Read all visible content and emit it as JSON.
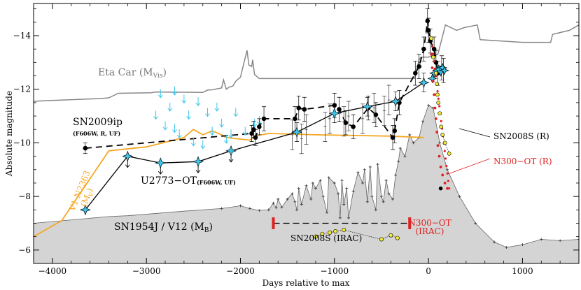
{
  "chart_data": {
    "type": "line",
    "xlabel": "Days relative to max",
    "ylabel": "Absolute magnitude",
    "xlim": [
      -4200,
      1600
    ],
    "ylim": [
      -5.5,
      -15.2
    ],
    "y_inverted": true,
    "x_ticks": [
      -4000,
      -3000,
      -2000,
      -1000,
      0,
      1000
    ],
    "x_tick_labels": [
      "−4000",
      "−3000",
      "−2000",
      "−1000",
      "0",
      "1000"
    ],
    "y_ticks": [
      -6,
      -8,
      -10,
      -12,
      -14
    ],
    "y_tick_labels": [
      "−6",
      "−8",
      "−10",
      "−12",
      "−14"
    ],
    "colors": {
      "sn1954j_fill": "#d4d4d4",
      "eta_car": "#888888",
      "v1_n2363": "#f5a623",
      "n300_ot": "#e02020",
      "sn2008s": "#f2ea3a",
      "cyan_star": "#3ec6ea",
      "black": "#000000"
    },
    "annotations": {
      "eta_car": "Eta Car (M",
      "eta_car_sub": "Vis",
      "eta_car_close": ")",
      "sn2009ip": "SN2009ip",
      "sn2009ip_filters": "(F606W, R, UF)",
      "v1_n2363": "V1 N2363",
      "v1_n2363_band_open": "(M",
      "v1_n2363_band_sub": "V",
      "v1_n2363_band_close": ")",
      "u2773": "U2773−OT",
      "u2773_filters": "(F606W, UF)",
      "sn1954j": "SN1954J / V12 (M",
      "sn1954j_sub": "B",
      "sn1954j_close": ")",
      "sn2008s_irac": "SN2008S (IRAC)",
      "n300_irac_1": "N300−OT",
      "n300_irac_2": "(IRAC)",
      "sn2008s_r": "SN2008S (R)",
      "n300_r": "N300−OT (R)"
    },
    "series": [
      {
        "name": "SN1954J / V12 (MB)",
        "values": [
          [
            -4200,
            -7.0
          ],
          [
            -3400,
            -7.25
          ],
          [
            -3200,
            -7.28
          ],
          [
            -2600,
            -7.45
          ],
          [
            -2200,
            -7.55
          ],
          [
            -2000,
            -7.65
          ],
          [
            -1900,
            -7.55
          ],
          [
            -1800,
            -7.48
          ],
          [
            -1700,
            -7.5
          ],
          [
            -1650,
            -7.75
          ],
          [
            -1620,
            -7.58
          ],
          [
            -1600,
            -7.9
          ],
          [
            -1560,
            -7.6
          ],
          [
            -1500,
            -7.9
          ],
          [
            -1450,
            -8.1
          ],
          [
            -1420,
            -7.8
          ],
          [
            -1400,
            -7.5
          ],
          [
            -1380,
            -8.3
          ],
          [
            -1350,
            -7.7
          ],
          [
            -1300,
            -8.4
          ],
          [
            -1250,
            -7.9
          ],
          [
            -1230,
            -8.5
          ],
          [
            -1200,
            -8.3
          ],
          [
            -1150,
            -8.6
          ],
          [
            -1120,
            -8.0
          ],
          [
            -1080,
            -7.4
          ],
          [
            -1060,
            -8.7
          ],
          [
            -1000,
            -8.5
          ],
          [
            -960,
            -8.1
          ],
          [
            -940,
            -7.2
          ],
          [
            -920,
            -8.6
          ],
          [
            -900,
            -7.7
          ],
          [
            -870,
            -8.3
          ],
          [
            -850,
            -7.2
          ],
          [
            -800,
            -8.2
          ],
          [
            -750,
            -8.9
          ],
          [
            -700,
            -8.5
          ],
          [
            -680,
            -9.0
          ],
          [
            -650,
            -7.8
          ],
          [
            -620,
            -9.1
          ],
          [
            -600,
            -8.0
          ],
          [
            -560,
            -7.5
          ],
          [
            -540,
            -9.2
          ],
          [
            -500,
            -8.0
          ],
          [
            -480,
            -7.8
          ],
          [
            -450,
            -8.6
          ],
          [
            -420,
            -8.1
          ],
          [
            -380,
            -7.9
          ],
          [
            -350,
            -8.8
          ],
          [
            -320,
            -9.3
          ],
          [
            -300,
            -9.8
          ],
          [
            -250,
            -9.5
          ],
          [
            -200,
            -10.3
          ],
          [
            -160,
            -10.0
          ],
          [
            -100,
            -10.2
          ],
          [
            -60,
            -10.8
          ],
          [
            0,
            -11.4
          ],
          [
            50,
            -11.3
          ],
          [
            120,
            -10.0
          ],
          [
            200,
            -9.0
          ],
          [
            330,
            -8.0
          ],
          [
            500,
            -7.0
          ],
          [
            700,
            -6.3
          ],
          [
            830,
            -6.1
          ],
          [
            1000,
            -6.2
          ],
          [
            1200,
            -6.4
          ],
          [
            1400,
            -6.35
          ],
          [
            1600,
            -6.4
          ]
        ]
      },
      {
        "name": "Eta Car (MVis)",
        "values": [
          [
            -4200,
            -11.55
          ],
          [
            -4100,
            -11.57
          ],
          [
            -3500,
            -11.65
          ],
          [
            -3400,
            -11.68
          ],
          [
            -3300,
            -11.85
          ],
          [
            -2950,
            -11.87
          ],
          [
            -2900,
            -11.9
          ],
          [
            -2400,
            -11.88
          ],
          [
            -2350,
            -11.97
          ],
          [
            -2300,
            -11.98
          ],
          [
            -2200,
            -12.05
          ],
          [
            -2180,
            -12.35
          ],
          [
            -2150,
            -12.0
          ],
          [
            -2120,
            -12.08
          ],
          [
            -2080,
            -12.12
          ],
          [
            -2050,
            -12.3
          ],
          [
            -2000,
            -12.45
          ],
          [
            -1930,
            -13.45
          ],
          [
            -1910,
            -12.9
          ],
          [
            -1880,
            -12.85
          ],
          [
            -1870,
            -13.1
          ],
          [
            -1850,
            -12.55
          ],
          [
            -1800,
            -12.4
          ],
          [
            -150,
            -12.4
          ],
          [
            -100,
            -13.1
          ],
          [
            -80,
            -13.2
          ],
          [
            0,
            -13.2
          ],
          [
            100,
            -13.3
          ],
          [
            180,
            -14.4
          ],
          [
            300,
            -14.2
          ],
          [
            380,
            -14.3
          ],
          [
            520,
            -14.4
          ],
          [
            550,
            -13.85
          ],
          [
            1000,
            -13.75
          ],
          [
            1300,
            -13.75
          ],
          [
            1320,
            -14.05
          ],
          [
            1500,
            -14.2
          ],
          [
            1600,
            -14.4
          ]
        ]
      },
      {
        "name": "V1 N2363 (MV)",
        "values": [
          [
            -4200,
            -6.5
          ],
          [
            -3900,
            -7.1
          ],
          [
            -3400,
            -9.7
          ],
          [
            -3000,
            -9.85
          ],
          [
            -2600,
            -10.2
          ],
          [
            -2500,
            -10.5
          ],
          [
            -2400,
            -10.3
          ],
          [
            -2300,
            -10.45
          ],
          [
            -2200,
            -10.3
          ],
          [
            -2150,
            -10.2
          ],
          [
            -1900,
            -10.1
          ],
          [
            -1850,
            -10.25
          ],
          [
            -1700,
            -10.35
          ],
          [
            -1200,
            -10.3
          ],
          [
            -400,
            -10.25
          ],
          [
            -50,
            -10.2
          ]
        ]
      },
      {
        "name": "U2773-OT (F606W, UF)",
        "values": [
          [
            -3650,
            -7.5
          ],
          [
            -3200,
            -9.5
          ],
          [
            -2850,
            -9.25
          ],
          [
            -2450,
            -9.3
          ],
          [
            -2100,
            -9.7
          ],
          [
            -1400,
            -10.4
          ],
          [
            -1000,
            -11.1
          ],
          [
            -650,
            -11.35
          ],
          [
            -350,
            -11.55
          ],
          [
            -50,
            -12.25
          ]
        ]
      },
      {
        "name": "SN2009ip (F606W, R, UF)",
        "values": [
          [
            -3650,
            -9.8
          ],
          [
            -1880,
            -10.35
          ],
          [
            -1860,
            -10.5
          ],
          [
            -1840,
            -10.2
          ],
          [
            -1800,
            -10.6
          ],
          [
            -1750,
            -10.9
          ],
          [
            -1420,
            -10.9
          ],
          [
            -1380,
            -11.3
          ],
          [
            -1320,
            -11.25
          ],
          [
            -1000,
            -11.4
          ],
          [
            -950,
            -11.25
          ],
          [
            -880,
            -10.75
          ],
          [
            -800,
            -10.6
          ],
          [
            -640,
            -11.3
          ],
          [
            -560,
            -11.05
          ],
          [
            -380,
            -10.2
          ],
          [
            -360,
            -10.45
          ],
          [
            -310,
            -11.5
          ],
          [
            -140,
            -12.6
          ],
          [
            -100,
            -12.85
          ],
          [
            -50,
            -13.5
          ],
          [
            -10,
            -14.55
          ],
          [
            0,
            -14.2
          ],
          [
            20,
            -13.8
          ],
          [
            60,
            -13.5
          ],
          [
            80,
            -13.0
          ],
          [
            100,
            -12.6
          ],
          [
            140,
            -12.8
          ],
          [
            160,
            -12.7
          ]
        ]
      },
      {
        "name": "SN2008S (IRAC)",
        "values": [
          [
            -1200,
            -6.5
          ],
          [
            -1130,
            -6.6
          ],
          [
            -1050,
            -6.65
          ],
          [
            -990,
            -6.7
          ],
          [
            -900,
            -6.75
          ],
          [
            -500,
            -6.4
          ],
          [
            -400,
            -6.55
          ],
          [
            -330,
            -6.45
          ]
        ]
      },
      {
        "name": "SN2008S (R)",
        "values": [
          [
            30,
            -13.9
          ],
          [
            50,
            -13.2
          ],
          [
            80,
            -12.6
          ],
          [
            90,
            -12.2
          ],
          [
            95,
            -11.8
          ],
          [
            105,
            -11.5
          ],
          [
            120,
            -11.1
          ],
          [
            135,
            -10.6
          ],
          [
            150,
            -10.3
          ],
          [
            175,
            -10.0
          ],
          [
            220,
            -9.6
          ]
        ]
      },
      {
        "name": "N300-OT (R)",
        "values": [
          [
            20,
            -13.9
          ],
          [
            30,
            -13.3
          ],
          [
            40,
            -12.8
          ],
          [
            50,
            -12.3
          ],
          [
            60,
            -11.8
          ],
          [
            70,
            -11.3
          ],
          [
            80,
            -10.9
          ],
          [
            90,
            -10.4
          ],
          [
            100,
            -9.9
          ],
          [
            115,
            -9.5
          ],
          [
            130,
            -9.1
          ],
          [
            150,
            -8.8
          ],
          [
            175,
            -8.5
          ],
          [
            200,
            -8.3
          ]
        ]
      }
    ]
  }
}
